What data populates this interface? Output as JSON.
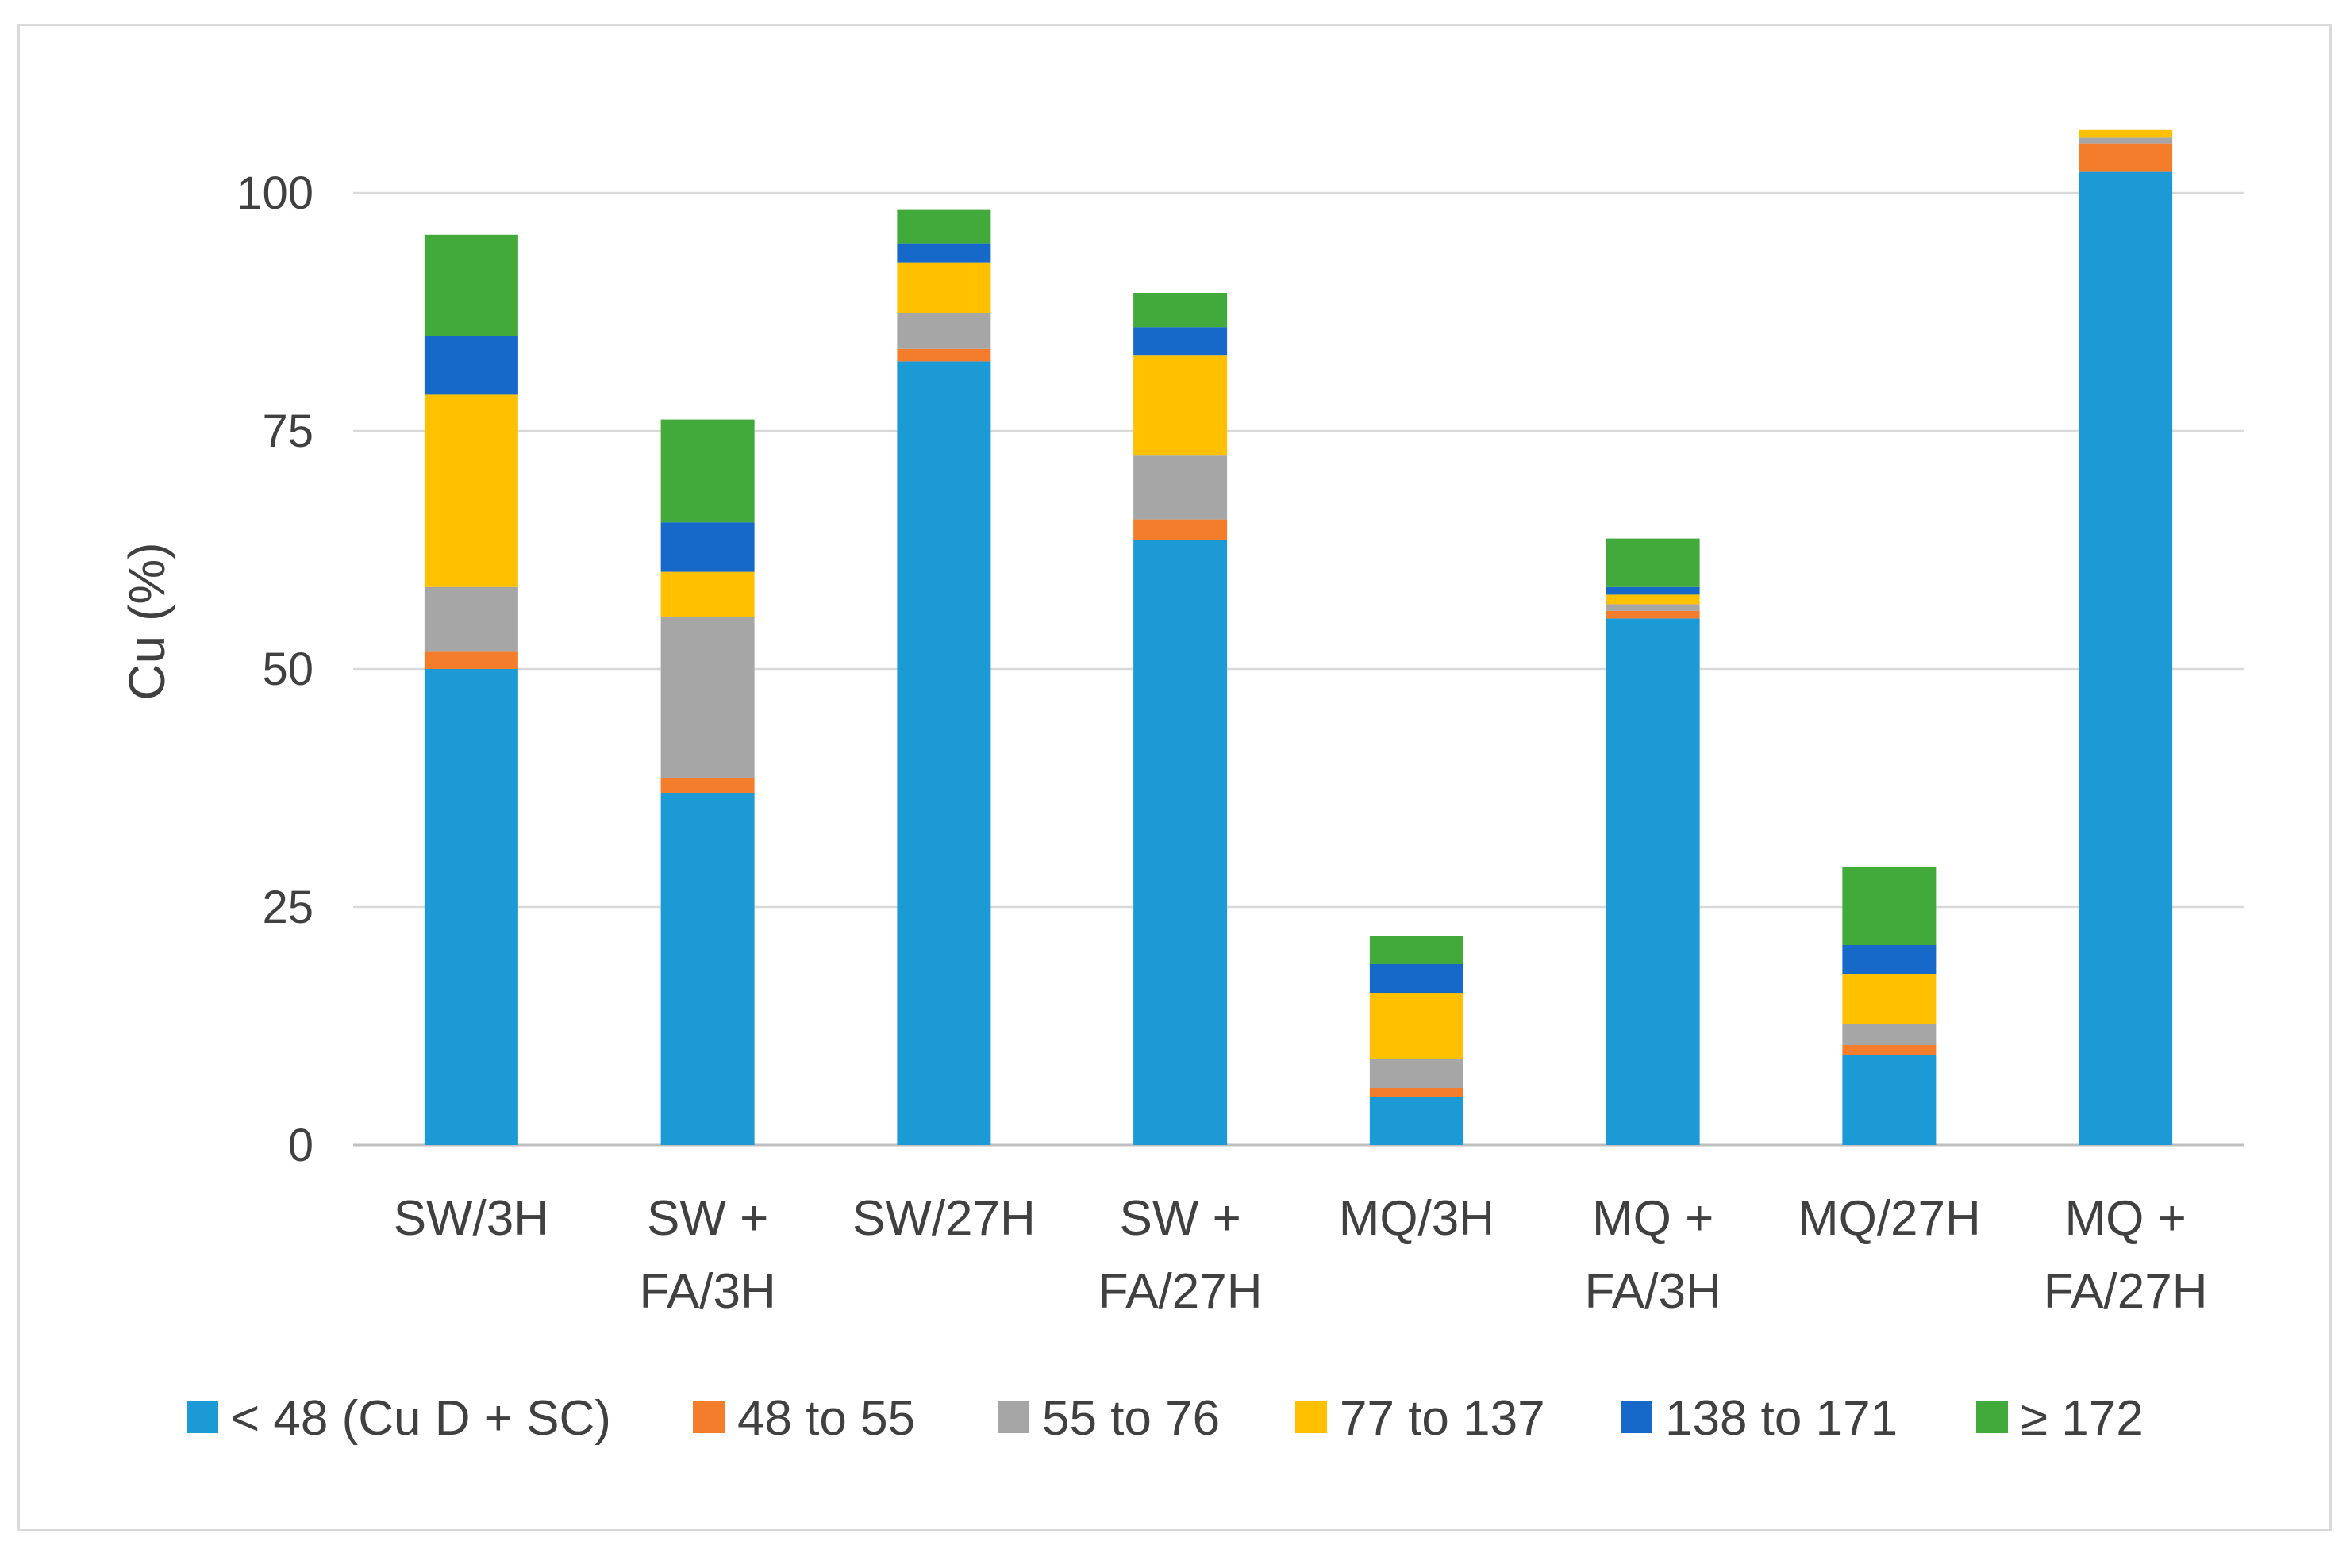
{
  "chart_data": {
    "type": "bar",
    "stacked": true,
    "title": "",
    "xlabel": "",
    "ylabel": "Cu (%)",
    "ylim": [
      0,
      110
    ],
    "yticks": [
      0,
      25,
      50,
      75,
      100
    ],
    "gridlines": true,
    "legend_position": "bottom",
    "categories": [
      [
        "SW/3H"
      ],
      [
        "SW +",
        "FA/3H"
      ],
      [
        "SW/27H"
      ],
      [
        "SW +",
        "FA/27H"
      ],
      [
        "MQ/3H"
      ],
      [
        "MQ +",
        "FA/3H"
      ],
      [
        "MQ/27H"
      ],
      [
        "MQ +",
        "FA/27H"
      ]
    ],
    "series": [
      {
        "name": "< 48 (Cu D + SC)",
        "color": "#1b9ad6",
        "values": [
          50,
          37,
          82.3,
          63.5,
          5,
          55.3,
          9.5,
          102.2
        ]
      },
      {
        "name": "48 to 55",
        "color": "#f47d2c",
        "values": [
          1.8,
          1.5,
          1.3,
          2.2,
          1,
          0.8,
          1,
          3
        ]
      },
      {
        "name": "55 to 76",
        "color": "#a6a6a6",
        "values": [
          6.8,
          17,
          3.8,
          6.7,
          3,
          0.7,
          2.2,
          0.6
        ]
      },
      {
        "name": "77 to 137",
        "color": "#ffc000",
        "values": [
          20.2,
          4.7,
          5.3,
          10.5,
          7,
          1,
          5.3,
          0.8
        ]
      },
      {
        "name": "138 to 171",
        "color": "#1769c9",
        "values": [
          6.2,
          5.2,
          2,
          3,
          3,
          0.8,
          3,
          0
        ]
      },
      {
        "name": "≥ 172",
        "color": "#41aa3b",
        "values": [
          10.6,
          10.8,
          3.5,
          3.6,
          3,
          5.1,
          8.2,
          0
        ]
      }
    ]
  }
}
